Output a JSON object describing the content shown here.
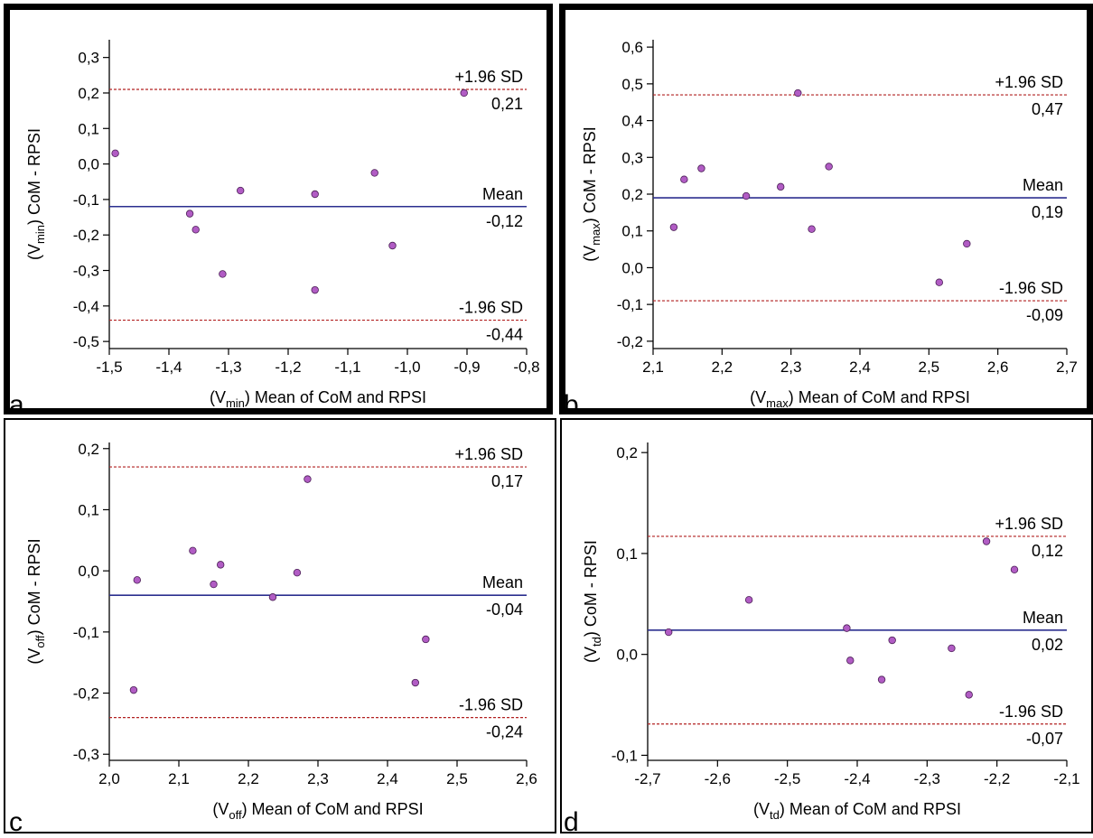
{
  "chart_data": [
    {
      "type": "scatter",
      "panel_letter": "a",
      "xlabel_prefix": "(V",
      "xlabel_sub": "min",
      "xlabel_suffix": ") Mean of CoM and RPSI",
      "ylabel_prefix": "(V",
      "ylabel_sub": "min",
      "ylabel_suffix": ") CoM - RPSI",
      "xlim": [
        -1.5,
        -0.8
      ],
      "ylim": [
        -0.52,
        0.35
      ],
      "xticks": [
        -1.5,
        -1.4,
        -1.3,
        -1.2,
        -1.1,
        -1.0,
        -0.9,
        -0.8
      ],
      "xtick_labels": [
        "-1,5",
        "-1,4",
        "-1,3",
        "-1,2",
        "-1,1",
        "-1,0",
        "-0,9",
        "-0,8"
      ],
      "yticks": [
        0.3,
        0.2,
        0.1,
        0.0,
        -0.1,
        -0.2,
        -0.3,
        -0.4,
        -0.5
      ],
      "ytick_labels": [
        "0,3",
        "0,2",
        "0,1",
        "0,0",
        "-0,1",
        "-0,2",
        "-0,3",
        "-0,4",
        "-0,5"
      ],
      "points": [
        {
          "x": -1.49,
          "y": 0.03
        },
        {
          "x": -1.365,
          "y": -0.14
        },
        {
          "x": -1.355,
          "y": -0.185
        },
        {
          "x": -1.31,
          "y": -0.31
        },
        {
          "x": -1.28,
          "y": -0.075
        },
        {
          "x": -1.155,
          "y": -0.085
        },
        {
          "x": -1.155,
          "y": -0.355
        },
        {
          "x": -1.055,
          "y": -0.025
        },
        {
          "x": -1.025,
          "y": -0.23
        },
        {
          "x": -0.905,
          "y": 0.2
        }
      ],
      "mean": -0.12,
      "upper": 0.21,
      "lower": -0.44,
      "mean_label": "Mean",
      "mean_value_label": "-0,12",
      "upper_label": "+1.96 SD",
      "upper_value_label": "0,21",
      "lower_label": "-1.96 SD",
      "lower_value_label": "-0,44"
    },
    {
      "type": "scatter",
      "panel_letter": "b",
      "xlabel_prefix": "(V",
      "xlabel_sub": "max",
      "xlabel_suffix": ") Mean of CoM and RPSI",
      "ylabel_prefix": "(V",
      "ylabel_sub": "max",
      "ylabel_suffix": ") CoM - RPSI",
      "xlim": [
        2.1,
        2.7
      ],
      "ylim": [
        -0.22,
        0.62
      ],
      "xticks": [
        2.1,
        2.2,
        2.3,
        2.4,
        2.5,
        2.6,
        2.7
      ],
      "xtick_labels": [
        "2,1",
        "2,2",
        "2,3",
        "2,4",
        "2,5",
        "2,6",
        "2,7"
      ],
      "yticks": [
        0.6,
        0.5,
        0.4,
        0.3,
        0.2,
        0.1,
        0.0,
        -0.1,
        -0.2
      ],
      "ytick_labels": [
        "0,6",
        "0,5",
        "0,4",
        "0,3",
        "0,2",
        "0,1",
        "0,0",
        "-0,1",
        "-0,2"
      ],
      "points": [
        {
          "x": 2.13,
          "y": 0.11
        },
        {
          "x": 2.145,
          "y": 0.24
        },
        {
          "x": 2.17,
          "y": 0.27
        },
        {
          "x": 2.235,
          "y": 0.195
        },
        {
          "x": 2.285,
          "y": 0.22
        },
        {
          "x": 2.31,
          "y": 0.475
        },
        {
          "x": 2.33,
          "y": 0.105
        },
        {
          "x": 2.355,
          "y": 0.275
        },
        {
          "x": 2.515,
          "y": -0.04
        },
        {
          "x": 2.555,
          "y": 0.065
        }
      ],
      "mean": 0.19,
      "upper": 0.47,
      "lower": -0.09,
      "mean_label": "Mean",
      "mean_value_label": "0,19",
      "upper_label": "+1.96 SD",
      "upper_value_label": "0,47",
      "lower_label": "-1.96 SD",
      "lower_value_label": "-0,09"
    },
    {
      "type": "scatter",
      "panel_letter": "c",
      "xlabel_prefix": "(V",
      "xlabel_sub": "off",
      "xlabel_suffix": ") Mean of CoM and RPSI",
      "ylabel_prefix": "(V",
      "ylabel_sub": "off",
      "ylabel_suffix": ") CoM - RPSI",
      "xlim": [
        2.0,
        2.6
      ],
      "ylim": [
        -0.31,
        0.21
      ],
      "xticks": [
        2.0,
        2.1,
        2.2,
        2.3,
        2.4,
        2.5,
        2.6
      ],
      "xtick_labels": [
        "2,0",
        "2,1",
        "2,2",
        "2,3",
        "2,4",
        "2,5",
        "2,6"
      ],
      "yticks": [
        0.2,
        0.1,
        0.0,
        -0.1,
        -0.2,
        -0.3
      ],
      "ytick_labels": [
        "0,2",
        "0,1",
        "0,0",
        "-0,1",
        "-0,2",
        "-0,3"
      ],
      "points": [
        {
          "x": 2.035,
          "y": -0.195
        },
        {
          "x": 2.04,
          "y": -0.015
        },
        {
          "x": 2.12,
          "y": 0.033
        },
        {
          "x": 2.15,
          "y": -0.022
        },
        {
          "x": 2.16,
          "y": 0.01
        },
        {
          "x": 2.235,
          "y": -0.043
        },
        {
          "x": 2.27,
          "y": -0.003
        },
        {
          "x": 2.285,
          "y": 0.15
        },
        {
          "x": 2.44,
          "y": -0.183
        },
        {
          "x": 2.455,
          "y": -0.112
        }
      ],
      "mean": -0.04,
      "upper": 0.17,
      "lower": -0.24,
      "mean_label": "Mean",
      "mean_value_label": "-0,04",
      "upper_label": "+1.96 SD",
      "upper_value_label": "0,17",
      "lower_label": "-1.96 SD",
      "lower_value_label": "-0,24"
    },
    {
      "type": "scatter",
      "panel_letter": "d",
      "xlabel_prefix": "(V",
      "xlabel_sub": "td",
      "xlabel_suffix": ") Mean of CoM and RPSI",
      "ylabel_prefix": "(V",
      "ylabel_sub": "td",
      "ylabel_suffix": ") CoM - RPSI",
      "xlim": [
        -2.7,
        -2.1
      ],
      "ylim": [
        -0.105,
        0.21
      ],
      "xticks": [
        -2.7,
        -2.6,
        -2.5,
        -2.4,
        -2.3,
        -2.2,
        -2.1
      ],
      "xtick_labels": [
        "-2,7",
        "-2,6",
        "-2,5",
        "-2,4",
        "-2,3",
        "-2,2",
        "-2,1"
      ],
      "yticks": [
        0.2,
        0.1,
        0.0,
        -0.1
      ],
      "ytick_labels": [
        "0,2",
        "0,1",
        "0,0",
        "-0,1"
      ],
      "points": [
        {
          "x": -2.67,
          "y": 0.022
        },
        {
          "x": -2.555,
          "y": 0.054
        },
        {
          "x": -2.415,
          "y": 0.026
        },
        {
          "x": -2.41,
          "y": -0.006
        },
        {
          "x": -2.365,
          "y": -0.025
        },
        {
          "x": -2.35,
          "y": 0.014
        },
        {
          "x": -2.265,
          "y": 0.006
        },
        {
          "x": -2.24,
          "y": -0.04
        },
        {
          "x": -2.215,
          "y": 0.112
        },
        {
          "x": -2.175,
          "y": 0.084
        }
      ],
      "mean": 0.024,
      "upper": 0.117,
      "lower": -0.069,
      "mean_label": "Mean",
      "mean_value_label": "0,02",
      "upper_label": "+1.96 SD",
      "upper_value_label": "0,12",
      "lower_label": "-1.96 SD",
      "lower_value_label": "-0,07"
    }
  ],
  "colors": {
    "mean_line": "#2b2f8f",
    "limit_line": "#b22222",
    "point_fill": "#b15cc4",
    "point_stroke": "#4a1f55",
    "axis": "#000000",
    "panel_border": "#000000"
  }
}
